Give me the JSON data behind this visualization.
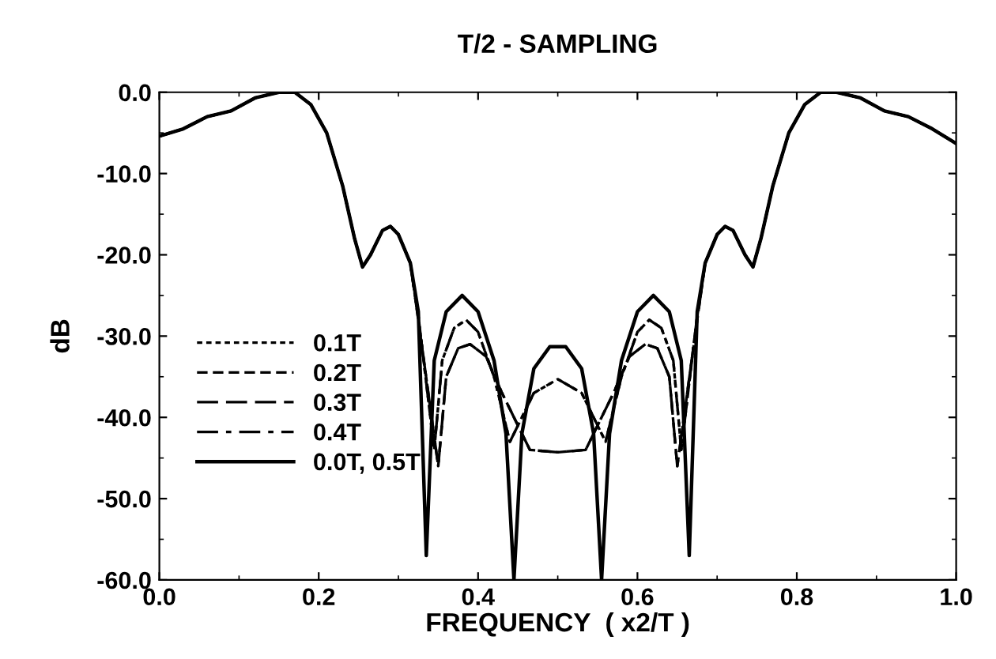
{
  "chart_data": {
    "type": "line",
    "title": "T/2 - SAMPLING",
    "xlabel": "FREQUENCY  ( x2/T )",
    "ylabel": "dB",
    "xlim": [
      0,
      1
    ],
    "ylim": [
      -60,
      0
    ],
    "xticks": [
      {
        "value": 0,
        "label": "0.0"
      },
      {
        "value": 0.2,
        "label": "0.2"
      },
      {
        "value": 0.4,
        "label": "0.4"
      },
      {
        "value": 0.6,
        "label": "0.6"
      },
      {
        "value": 0.8,
        "label": "0.8"
      },
      {
        "value": 1,
        "label": "1.0"
      }
    ],
    "yticks": [
      {
        "value": 0,
        "label": "0.0"
      },
      {
        "value": -10,
        "label": "-10.0"
      },
      {
        "value": -20,
        "label": "-20.0"
      },
      {
        "value": -30,
        "label": "-30.0"
      },
      {
        "value": -40,
        "label": "-40.0"
      },
      {
        "value": -50,
        "label": "-50.0"
      },
      {
        "value": -60,
        "label": "-60.0"
      }
    ],
    "grid": false,
    "legend": "left",
    "marker": "none",
    "series": [
      {
        "name": "0.1T",
        "color": "#000000",
        "line_style": "dotted",
        "x": [
          0,
          0.03,
          0.06,
          0.09,
          0.12,
          0.15,
          0.17,
          0.19,
          0.21,
          0.23,
          0.245,
          0.255,
          0.265,
          0.28,
          0.29,
          0.3,
          0.315,
          0.325,
          0.345,
          0.355,
          0.37,
          0.385,
          0.4,
          0.42,
          0.44,
          0.455,
          0.47,
          0.5,
          0.53,
          0.545,
          0.56,
          0.58,
          0.6,
          0.615,
          0.63,
          0.645,
          0.655,
          0.675,
          0.685,
          0.7,
          0.71,
          0.72,
          0.735,
          0.745,
          0.755,
          0.77,
          0.79,
          0.81,
          0.83,
          0.85,
          0.88,
          0.91,
          0.94,
          0.97,
          1
        ],
        "values": [
          -5.4,
          -4.5,
          -3,
          -2.3,
          -0.7,
          0,
          0,
          -1.5,
          -5,
          -11.5,
          -18,
          -21.5,
          -20,
          -17,
          -16.5,
          -17.5,
          -21,
          -27.5,
          -44,
          -33,
          -29,
          -28,
          -29.5,
          -35,
          -43,
          -40,
          -37,
          -35.3,
          -37,
          -40,
          -43,
          -35,
          -29.5,
          -28,
          -29,
          -33,
          -44,
          -27.5,
          -21,
          -17.5,
          -16.5,
          -17,
          -20,
          -21.5,
          -18,
          -11.5,
          -5,
          -1.5,
          0,
          0,
          -0.7,
          -2.3,
          -3,
          -4.5,
          -6.3
        ]
      },
      {
        "name": "0.2T",
        "color": "#000000",
        "line_style": "dashed",
        "x": [
          0,
          0.03,
          0.06,
          0.09,
          0.12,
          0.15,
          0.17,
          0.19,
          0.21,
          0.23,
          0.245,
          0.255,
          0.265,
          0.28,
          0.29,
          0.3,
          0.315,
          0.325,
          0.35,
          0.36,
          0.375,
          0.39,
          0.41,
          0.43,
          0.45,
          0.465,
          0.5,
          0.535,
          0.55,
          0.57,
          0.59,
          0.61,
          0.625,
          0.64,
          0.65,
          0.675,
          0.685,
          0.7,
          0.71,
          0.72,
          0.735,
          0.745,
          0.755,
          0.77,
          0.79,
          0.81,
          0.83,
          0.85,
          0.88,
          0.91,
          0.94,
          0.97,
          1
        ],
        "values": [
          -5.4,
          -4.5,
          -3,
          -2.3,
          -0.7,
          0,
          0,
          -1.5,
          -5,
          -11.5,
          -18,
          -21.5,
          -20,
          -17,
          -16.5,
          -17.5,
          -21,
          -28,
          -46,
          -35,
          -31.5,
          -31,
          -32.5,
          -37,
          -41,
          -44,
          -44.3,
          -44,
          -41,
          -37,
          -32.5,
          -31,
          -31.5,
          -35,
          -46,
          -28,
          -21,
          -17.5,
          -16.5,
          -17,
          -20,
          -21.5,
          -18,
          -11.5,
          -5,
          -1.5,
          0,
          0,
          -0.7,
          -2.3,
          -3,
          -4.5,
          -6.3
        ]
      },
      {
        "name": "0.3T",
        "color": "#000000",
        "line_style": "long_dashed",
        "x": [
          0,
          0.03,
          0.06,
          0.09,
          0.12,
          0.15,
          0.17,
          0.19,
          0.21,
          0.23,
          0.245,
          0.255,
          0.265,
          0.28,
          0.29,
          0.3,
          0.315,
          0.325,
          0.35,
          0.36,
          0.375,
          0.39,
          0.41,
          0.43,
          0.45,
          0.465,
          0.5,
          0.535,
          0.55,
          0.57,
          0.59,
          0.61,
          0.625,
          0.64,
          0.65,
          0.675,
          0.685,
          0.7,
          0.71,
          0.72,
          0.735,
          0.745,
          0.755,
          0.77,
          0.79,
          0.81,
          0.83,
          0.85,
          0.88,
          0.91,
          0.94,
          0.97,
          1
        ],
        "values": [
          -5.4,
          -4.5,
          -3,
          -2.3,
          -0.7,
          0,
          0,
          -1.5,
          -5,
          -11.5,
          -18,
          -21.5,
          -20,
          -17,
          -16.5,
          -17.5,
          -21,
          -28,
          -46,
          -35,
          -31.5,
          -31,
          -32.5,
          -37,
          -41,
          -44,
          -44.3,
          -44,
          -41,
          -37,
          -32.5,
          -31,
          -31.5,
          -35,
          -46,
          -28,
          -21,
          -17.5,
          -16.5,
          -17,
          -20,
          -21.5,
          -18,
          -11.5,
          -5,
          -1.5,
          0,
          0,
          -0.7,
          -2.3,
          -3,
          -4.5,
          -6.3
        ]
      },
      {
        "name": "0.4T",
        "color": "#000000",
        "line_style": "dashdot",
        "x": [
          0,
          0.03,
          0.06,
          0.09,
          0.12,
          0.15,
          0.17,
          0.19,
          0.21,
          0.23,
          0.245,
          0.255,
          0.265,
          0.28,
          0.29,
          0.3,
          0.315,
          0.325,
          0.345,
          0.355,
          0.37,
          0.385,
          0.4,
          0.42,
          0.44,
          0.455,
          0.47,
          0.5,
          0.53,
          0.545,
          0.56,
          0.58,
          0.6,
          0.615,
          0.63,
          0.645,
          0.655,
          0.675,
          0.685,
          0.7,
          0.71,
          0.72,
          0.735,
          0.745,
          0.755,
          0.77,
          0.79,
          0.81,
          0.83,
          0.85,
          0.88,
          0.91,
          0.94,
          0.97,
          1
        ],
        "values": [
          -5.4,
          -4.5,
          -3,
          -2.3,
          -0.7,
          0,
          0,
          -1.5,
          -5,
          -11.5,
          -18,
          -21.5,
          -20,
          -17,
          -16.5,
          -17.5,
          -21,
          -27.5,
          -44,
          -33,
          -29,
          -28,
          -29.5,
          -35,
          -43,
          -40,
          -37,
          -35.3,
          -37,
          -40,
          -43,
          -35,
          -29.5,
          -28,
          -29,
          -33,
          -44,
          -27.5,
          -21,
          -17.5,
          -16.5,
          -17,
          -20,
          -21.5,
          -18,
          -11.5,
          -5,
          -1.5,
          0,
          0,
          -0.7,
          -2.3,
          -3,
          -4.5,
          -6.3
        ]
      },
      {
        "name": "0.0T, 0.5T",
        "color": "#000000",
        "line_style": "solid",
        "x": [
          0,
          0.03,
          0.06,
          0.09,
          0.12,
          0.15,
          0.17,
          0.19,
          0.21,
          0.23,
          0.245,
          0.255,
          0.265,
          0.28,
          0.29,
          0.3,
          0.315,
          0.325,
          0.335,
          0.345,
          0.36,
          0.38,
          0.4,
          0.42,
          0.435,
          0.445,
          0.455,
          0.47,
          0.49,
          0.51,
          0.53,
          0.545,
          0.555,
          0.565,
          0.58,
          0.6,
          0.62,
          0.64,
          0.655,
          0.665,
          0.675,
          0.685,
          0.7,
          0.71,
          0.72,
          0.735,
          0.745,
          0.755,
          0.77,
          0.79,
          0.81,
          0.83,
          0.85,
          0.88,
          0.91,
          0.94,
          0.97,
          1
        ],
        "values": [
          -5.4,
          -4.5,
          -3,
          -2.3,
          -0.7,
          0,
          0,
          -1.5,
          -5,
          -11.5,
          -18,
          -21.5,
          -20,
          -17,
          -16.5,
          -17.5,
          -21,
          -27,
          -57,
          -33,
          -27,
          -25,
          -27,
          -33,
          -42,
          -60,
          -42,
          -34,
          -31.3,
          -31.3,
          -34,
          -42,
          -60,
          -42,
          -33,
          -27,
          -25,
          -27,
          -33,
          -57,
          -27,
          -21,
          -17.5,
          -16.5,
          -17,
          -20,
          -21.5,
          -18,
          -11.5,
          -5,
          -1.5,
          0,
          0,
          -0.7,
          -2.3,
          -3,
          -4.5,
          -6.3
        ]
      }
    ]
  }
}
